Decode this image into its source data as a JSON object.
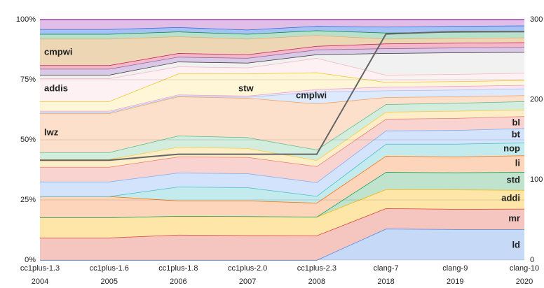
{
  "chart_data": {
    "type": "stacked_area",
    "categories": [
      "cc1plus-1.3",
      "cc1plus-1.6",
      "cc1plus-1.8",
      "cc1plus-2.0",
      "cc1plus-2.3",
      "clang-7",
      "clang-9",
      "clang-10"
    ],
    "category_sublabels": [
      "2004",
      "2005",
      "2006",
      "2007",
      "2008",
      "2018",
      "2019",
      "2020"
    ],
    "ylim": [
      0,
      100
    ],
    "yticks": [
      {
        "value": 0,
        "label": "0%"
      },
      {
        "value": 25,
        "label": "25%"
      },
      {
        "value": 50,
        "label": "50%"
      },
      {
        "value": 75,
        "label": "75%"
      },
      {
        "value": 100,
        "label": "100%"
      }
    ],
    "y2lim": [
      0,
      300
    ],
    "y2ticks": [
      0,
      100,
      200,
      300
    ],
    "grid": true,
    "series": [
      {
        "name": "ld",
        "color": "#4a86e8",
        "fill": "#c6daf8",
        "values": [
          0,
          0,
          0,
          0,
          0,
          13,
          12.8,
          12.8
        ]
      },
      {
        "name": "mr",
        "color": "#db4437",
        "fill": "#f5c5c0",
        "values": [
          9.3,
          9.3,
          10.5,
          10.3,
          10.2,
          8.5,
          8.4,
          8.5
        ]
      },
      {
        "name": "addi",
        "color": "#f4b400",
        "fill": "#fde6a8",
        "values": [
          8.4,
          8.4,
          7.8,
          7.9,
          7.8,
          7.9,
          8.1,
          7.8
        ]
      },
      {
        "name": "std",
        "color": "#0f9d58",
        "fill": "#bfe3cd",
        "values": [
          0,
          0,
          0,
          0,
          0,
          7.2,
          7.1,
          7.5
        ]
      },
      {
        "name": "li",
        "color": "#ff6d01",
        "fill": "#fcd5bb",
        "values": [
          8.8,
          8.8,
          6.4,
          6.5,
          5.8,
          6.7,
          6.6,
          6.9
        ]
      },
      {
        "name": "nop",
        "color": "#46bdc6",
        "fill": "#c3ebee",
        "values": [
          0,
          0,
          5.8,
          5.5,
          2.8,
          5,
          5.3,
          5.3
        ]
      },
      {
        "name": "bt",
        "color": "#7baaf7",
        "fill": "#d3e3fc",
        "values": [
          6.1,
          6.1,
          5.8,
          5.8,
          5.7,
          5.5,
          5.7,
          6
        ]
      },
      {
        "name": "bl",
        "color": "#ee7a70",
        "fill": "#f9d3d0",
        "values": [
          6.1,
          6.1,
          6.7,
          6.8,
          6.7,
          4.9,
          5,
          5
        ]
      },
      {
        "color": "#fbcb3c",
        "fill": "#fdeec8",
        "values": [
          3.2,
          3.2,
          4,
          3.7,
          2.5,
          2.9,
          3,
          2.7
        ]
      },
      {
        "color": "#57bb8a",
        "fill": "#d2ecdd",
        "values": [
          2.9,
          2.9,
          4.7,
          4.5,
          4.4,
          3.2,
          3.3,
          3.5
        ]
      },
      {
        "name": "lwz",
        "color": "#f6a05a",
        "fill": "#fde0cc",
        "values": [
          16.2,
          16.2,
          16.3,
          16.4,
          19.1,
          2.9,
          2.7,
          2.5
        ]
      },
      {
        "name": "cmplwi",
        "color": "#a4c2f4",
        "fill": "#dde9fc",
        "values": [
          0.5,
          0.5,
          0.3,
          0.4,
          5,
          2.8,
          2.8,
          2.8
        ]
      },
      {
        "color": "#e6a0c4",
        "fill": "#f8e4ee",
        "values": [
          0.5,
          0.5,
          0.5,
          0.5,
          1,
          1.5,
          1.5,
          1.5
        ]
      },
      {
        "name": "stw",
        "color": "#f3c623",
        "fill": "#fff6d8",
        "values": [
          4,
          4,
          8.7,
          9.2,
          7,
          2,
          2,
          2
        ]
      },
      {
        "name": "addis",
        "color": "#f4b6c2",
        "fill": "#fdf1f3",
        "values": [
          9.5,
          9.5,
          3,
          2.5,
          6,
          3,
          3,
          3
        ]
      },
      {
        "color": "#333333",
        "fill": "#f1f1f1",
        "values": [
          1.5,
          1.5,
          2,
          2,
          1.5,
          9,
          9,
          8.7
        ]
      },
      {
        "color": "#8e5ea2",
        "fill": "#d9c9e6",
        "values": [
          2.5,
          2.5,
          2,
          2,
          2,
          2,
          2,
          2
        ]
      },
      {
        "color": "#c2185b",
        "fill": "#f3b9c9",
        "values": [
          1.5,
          1.5,
          1.5,
          1.5,
          1.5,
          2,
          2,
          2
        ]
      },
      {
        "name": "cmpwi",
        "color": "#e0b06a",
        "fill": "#ecd6b4",
        "values": [
          11,
          11,
          7,
          6.5,
          4.5,
          2,
          2,
          2
        ]
      },
      {
        "color": "#0b8043",
        "fill": "#b7e1cd",
        "values": [
          2,
          2,
          2,
          2,
          2,
          2.5,
          2.5,
          2.5
        ]
      },
      {
        "color": "#3367d6",
        "fill": "#a4c2f4",
        "values": [
          2,
          2,
          1.8,
          1.8,
          1.8,
          2.5,
          2.5,
          2.5
        ]
      },
      {
        "color": "#ab47bc",
        "fill": "#e1bee7",
        "values": [
          4,
          4,
          3.2,
          4.2,
          2.7,
          3,
          2.7,
          2.5
        ]
      },
      {
        "type": "line",
        "axis": "y2",
        "color": "#666666",
        "values": [
          124.5,
          124.5,
          132,
          132,
          132,
          282,
          285,
          285
        ]
      }
    ]
  }
}
